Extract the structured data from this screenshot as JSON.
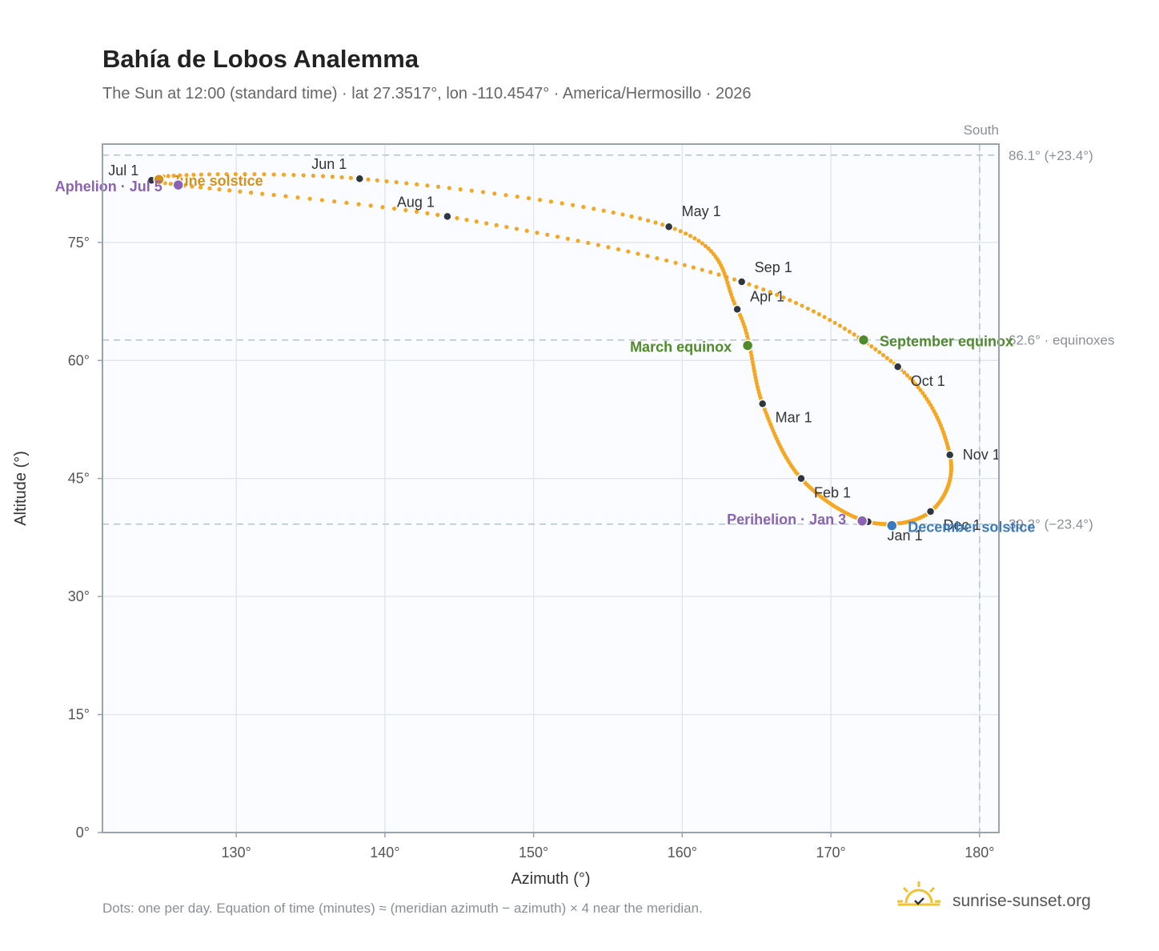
{
  "header": {
    "title": "Bahía de Lobos Analemma",
    "subtitle": "The Sun at 12:00 (standard time) · lat 27.3517°, lon -110.4547° · America/Hermosillo · 2026"
  },
  "footer": {
    "note": "Dots: one per day. Equation of time (minutes) ≈ (meridian azimuth − azimuth) × 4 near the meridian.",
    "brand": "sunrise-sunset.org"
  },
  "colors": {
    "curve": "#f5a623",
    "month_dot": "#2f3640",
    "solstice_june": "#d4921a",
    "solstice_december": "#3a7abf",
    "equinox": "#4f8a2b",
    "apsis": "#8b63b5",
    "reference_line": "#b8c2cc",
    "plot_background": "#fafcff",
    "plot_border": "#97a3b1",
    "brand_sun": "#f2c12e"
  },
  "chart_data": {
    "type": "scatter",
    "title": "Bahía de Lobos Analemma",
    "xlabel": "Azimuth (°)",
    "ylabel": "Altitude (°)",
    "xlim": [
      121,
      181.3
    ],
    "ylim": [
      0,
      87.5
    ],
    "xticks": [
      130,
      140,
      150,
      160,
      170,
      180
    ],
    "xtick_labels": [
      "130°",
      "140°",
      "150°",
      "160°",
      "170°",
      "180°"
    ],
    "yticks": [
      0,
      15,
      30,
      45,
      60,
      75
    ],
    "ytick_labels": [
      "0°",
      "15°",
      "30°",
      "45°",
      "60°",
      "75°"
    ],
    "grid": true,
    "reference_lines": [
      {
        "axis": "y",
        "value": 86.1,
        "label": "86.1° (+23.4°)"
      },
      {
        "axis": "y",
        "value": 62.6,
        "label": "62.6° · equinoxes"
      },
      {
        "axis": "y",
        "value": 39.2,
        "label": "39.2° (−23.4°)"
      },
      {
        "axis": "x",
        "value": 180,
        "label": "South"
      }
    ],
    "analemma_keypoints": [
      {
        "date": "Jan 1",
        "day": 1,
        "az": 172.5,
        "alt": 39.5
      },
      {
        "date": "Feb 1",
        "day": 32,
        "az": 168.0,
        "alt": 45.0
      },
      {
        "date": "Mar 1",
        "day": 60,
        "az": 165.4,
        "alt": 54.5
      },
      {
        "date": "Apr 1",
        "day": 91,
        "az": 163.7,
        "alt": 66.5
      },
      {
        "date": "May 1",
        "day": 121,
        "az": 159.1,
        "alt": 77.0
      },
      {
        "date": "Jun 1",
        "day": 152,
        "az": 138.3,
        "alt": 83.1
      },
      {
        "date": "Jul 1",
        "day": 182,
        "az": 124.3,
        "alt": 82.9
      },
      {
        "date": "Aug 1",
        "day": 213,
        "az": 144.2,
        "alt": 78.3
      },
      {
        "date": "Sep 1",
        "day": 244,
        "az": 164.0,
        "alt": 70.0
      },
      {
        "date": "Oct 1",
        "day": 274,
        "az": 174.5,
        "alt": 59.2
      },
      {
        "date": "Nov 1",
        "day": 305,
        "az": 178.0,
        "alt": 48.0
      },
      {
        "date": "Dec 1",
        "day": 335,
        "az": 176.7,
        "alt": 40.8
      },
      {
        "date": "Jan 1",
        "day": 366,
        "az": 172.5,
        "alt": 39.5
      }
    ],
    "month_markers": [
      {
        "label": "Jan 1",
        "az": 172.5,
        "alt": 39.5
      },
      {
        "label": "Feb 1",
        "az": 168.0,
        "alt": 45.0
      },
      {
        "label": "Mar 1",
        "az": 165.4,
        "alt": 54.5
      },
      {
        "label": "Apr 1",
        "az": 163.7,
        "alt": 66.5
      },
      {
        "label": "May 1",
        "az": 159.1,
        "alt": 77.0
      },
      {
        "label": "Jun 1",
        "az": 138.3,
        "alt": 83.1
      },
      {
        "label": "Jul 1",
        "az": 124.3,
        "alt": 82.9
      },
      {
        "label": "Aug 1",
        "az": 144.2,
        "alt": 78.3
      },
      {
        "label": "Sep 1",
        "az": 164.0,
        "alt": 70.0
      },
      {
        "label": "Oct 1",
        "az": 174.5,
        "alt": 59.2
      },
      {
        "label": "Nov 1",
        "az": 178.0,
        "alt": 48.0
      },
      {
        "label": "Dec 1",
        "az": 176.7,
        "alt": 40.8
      }
    ],
    "events": [
      {
        "label": "June solstice",
        "az": 124.8,
        "alt": 83.0,
        "color": "#d4921a"
      },
      {
        "label": "Aphelion · Jul 5",
        "az": 126.1,
        "alt": 82.3,
        "color": "#8b63b5"
      },
      {
        "label": "March equinox",
        "az": 164.4,
        "alt": 61.9,
        "color": "#4f8a2b"
      },
      {
        "label": "September equinox",
        "az": 172.2,
        "alt": 62.6,
        "color": "#4f8a2b"
      },
      {
        "label": "Perihelion · Jan 3",
        "az": 172.1,
        "alt": 39.6,
        "color": "#8b63b5"
      },
      {
        "label": "December solstice",
        "az": 174.1,
        "alt": 39.0,
        "color": "#3a7abf"
      }
    ]
  }
}
